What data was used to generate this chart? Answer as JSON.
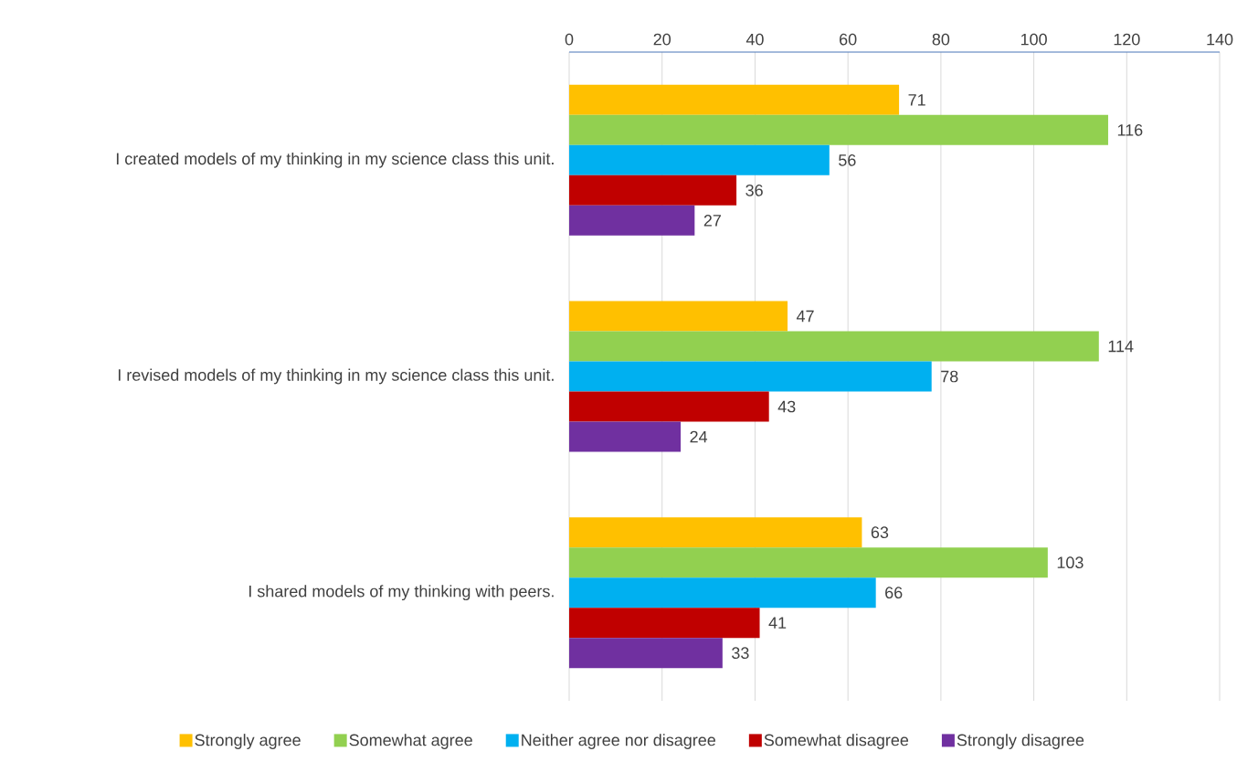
{
  "chart_data": {
    "type": "bar",
    "orientation": "horizontal",
    "categories": [
      "I created models of my thinking in my science class this unit.",
      "I revised models of my thinking in my science class this unit.",
      "I shared models of my thinking with peers."
    ],
    "series": [
      {
        "name": "Strongly agree",
        "color": "#ffc000",
        "values": [
          71,
          47,
          63
        ]
      },
      {
        "name": "Somewhat agree",
        "color": "#92d050",
        "values": [
          116,
          114,
          103
        ]
      },
      {
        "name": "Neither agree nor disagree",
        "color": "#00b0f0",
        "values": [
          56,
          78,
          66
        ]
      },
      {
        "name": "Somewhat disagree",
        "color": "#c00000",
        "values": [
          36,
          43,
          41
        ]
      },
      {
        "name": "Strongly disagree",
        "color": "#7030a0",
        "values": [
          27,
          24,
          33
        ]
      }
    ],
    "xlim": [
      0,
      140
    ],
    "xticks": [
      0,
      20,
      40,
      60,
      80,
      100,
      120,
      140
    ],
    "grid": "x",
    "legend": "bottom",
    "data_labels": true
  }
}
